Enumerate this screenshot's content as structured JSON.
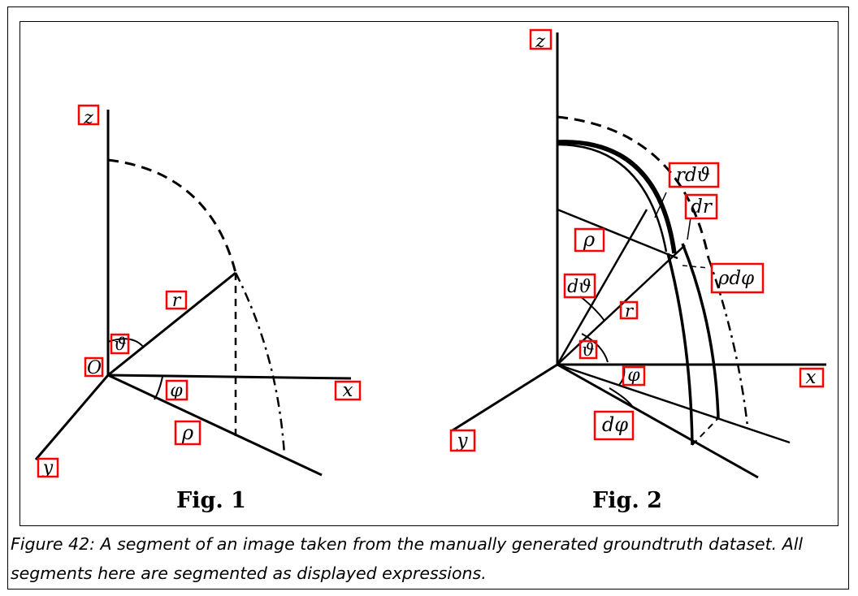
{
  "figure_1": {
    "title": "Fig. 1",
    "labels": {
      "z": "z",
      "r": "r",
      "theta": "ϑ",
      "origin": "O",
      "phi": "φ",
      "x": "x",
      "rho": "ρ",
      "y": "y"
    }
  },
  "figure_2": {
    "title": "Fig. 2",
    "labels": {
      "z": "z",
      "r_dtheta": "rdϑ",
      "dr": "dr",
      "rho": "ρ",
      "rho_dphi": "ρdφ",
      "dtheta": "dϑ",
      "r": "r",
      "theta": "ϑ",
      "phi": "φ",
      "x": "x",
      "dphi": "dφ",
      "y": "y"
    }
  },
  "annotation_color": "#ff0000",
  "caption": {
    "line1": "Figure 42: A segment of an image taken from the manually generated groundtruth dataset. All",
    "line2": "segments here are segmented as displayed expressions."
  }
}
